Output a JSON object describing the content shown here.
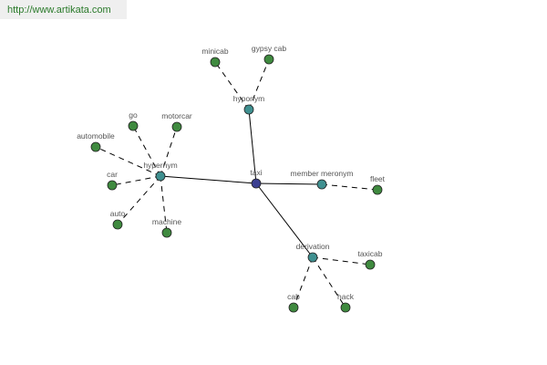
{
  "banner": {
    "text": "http://www.artikata.com"
  },
  "colors": {
    "root": "#3b3f91",
    "relation": "#3f9090",
    "leaf": "#3f8a3f",
    "edge": "#000000"
  },
  "nodes": [
    {
      "id": "taxi",
      "label": "taxi",
      "kind": "root"
    },
    {
      "id": "hyponym",
      "label": "hyponym",
      "kind": "relation"
    },
    {
      "id": "minicab",
      "label": "minicab",
      "kind": "leaf"
    },
    {
      "id": "gypsycab",
      "label": "gypsy cab",
      "kind": "leaf"
    },
    {
      "id": "hypernym",
      "label": "hypernym",
      "kind": "relation"
    },
    {
      "id": "go",
      "label": "go",
      "kind": "leaf"
    },
    {
      "id": "motorcar",
      "label": "motorcar",
      "kind": "leaf"
    },
    {
      "id": "automobile",
      "label": "automobile",
      "kind": "leaf"
    },
    {
      "id": "car",
      "label": "car",
      "kind": "leaf"
    },
    {
      "id": "auto",
      "label": "auto",
      "kind": "leaf"
    },
    {
      "id": "machine",
      "label": "machine",
      "kind": "leaf"
    },
    {
      "id": "member",
      "label": "member meronym",
      "kind": "relation"
    },
    {
      "id": "fleet",
      "label": "fleet",
      "kind": "leaf"
    },
    {
      "id": "derivation",
      "label": "derivation",
      "kind": "relation"
    },
    {
      "id": "taxicab",
      "label": "taxicab",
      "kind": "leaf"
    },
    {
      "id": "cab",
      "label": "cab",
      "kind": "leaf"
    },
    {
      "id": "hack",
      "label": "hack",
      "kind": "leaf"
    }
  ],
  "edges": [
    {
      "from": "taxi",
      "to": "hyponym",
      "style": "solid"
    },
    {
      "from": "taxi",
      "to": "hypernym",
      "style": "solid"
    },
    {
      "from": "taxi",
      "to": "member",
      "style": "solid"
    },
    {
      "from": "taxi",
      "to": "derivation",
      "style": "solid"
    },
    {
      "from": "hyponym",
      "to": "minicab",
      "style": "dashed"
    },
    {
      "from": "hyponym",
      "to": "gypsycab",
      "style": "dashed"
    },
    {
      "from": "hypernym",
      "to": "go",
      "style": "dashed"
    },
    {
      "from": "hypernym",
      "to": "motorcar",
      "style": "dashed"
    },
    {
      "from": "hypernym",
      "to": "automobile",
      "style": "dashed"
    },
    {
      "from": "hypernym",
      "to": "car",
      "style": "dashed"
    },
    {
      "from": "hypernym",
      "to": "auto",
      "style": "dashed"
    },
    {
      "from": "hypernym",
      "to": "machine",
      "style": "dashed"
    },
    {
      "from": "member",
      "to": "fleet",
      "style": "dashed"
    },
    {
      "from": "derivation",
      "to": "taxicab",
      "style": "dashed"
    },
    {
      "from": "derivation",
      "to": "cab",
      "style": "dashed"
    },
    {
      "from": "derivation",
      "to": "hack",
      "style": "dashed"
    }
  ]
}
